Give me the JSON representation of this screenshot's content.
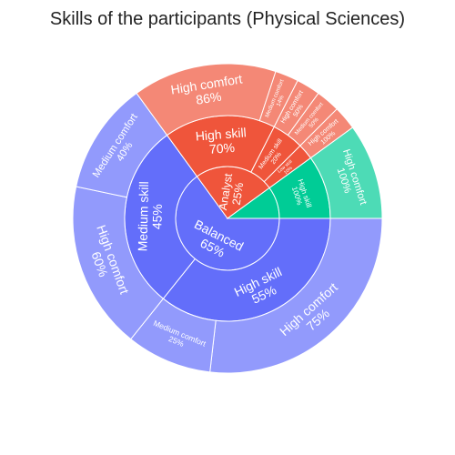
{
  "title": "Skills of the participants (Physical Sciences)",
  "chart_data": {
    "type": "sunburst",
    "title": "Skills of the participants (Physical Sciences)",
    "colors": {
      "Balanced": "#636efa",
      "Analyst": "#ef553b",
      "Mixed": "#00cc96"
    },
    "tree": [
      {
        "label": "Balanced",
        "pct": "65%",
        "value": 65,
        "color_key": "Balanced",
        "children": [
          {
            "label": "High skill",
            "pct": "55%",
            "value": 55,
            "children": [
              {
                "label": "High comfort",
                "pct": "75%",
                "value": 75
              },
              {
                "label": "Medium comfort",
                "pct": "25%",
                "value": 25
              }
            ]
          },
          {
            "label": "Medium skill",
            "pct": "45%",
            "value": 45,
            "children": [
              {
                "label": "High comfort",
                "pct": "60%",
                "value": 60
              },
              {
                "label": "Medium comfort",
                "pct": "40%",
                "value": 40
              }
            ]
          }
        ]
      },
      {
        "label": "Analyst",
        "pct": "25%",
        "value": 25,
        "color_key": "Analyst",
        "children": [
          {
            "label": "High skill",
            "pct": "70%",
            "value": 70,
            "children": [
              {
                "label": "High comfort",
                "pct": "86%",
                "value": 86
              },
              {
                "label": "Medium comfort",
                "pct": "14%",
                "value": 14
              }
            ]
          },
          {
            "label": "Medium skill",
            "pct": "20%",
            "value": 20,
            "children": [
              {
                "label": "High comfort",
                "pct": "50%",
                "value": 50
              },
              {
                "label": "Medium comfort",
                "pct": "50%",
                "value": 50
              }
            ]
          },
          {
            "label": "Low skill",
            "pct": "10%",
            "value": 10,
            "children": [
              {
                "label": "High comfort",
                "pct": "100%",
                "value": 100
              }
            ]
          }
        ]
      },
      {
        "label": "",
        "pct": "",
        "value": 10,
        "color_key": "Mixed",
        "children": [
          {
            "label": "High skill",
            "pct": "100%",
            "value": 100,
            "children": [
              {
                "label": "High comfort",
                "pct": "100%",
                "value": 100
              }
            ]
          }
        ]
      }
    ]
  }
}
